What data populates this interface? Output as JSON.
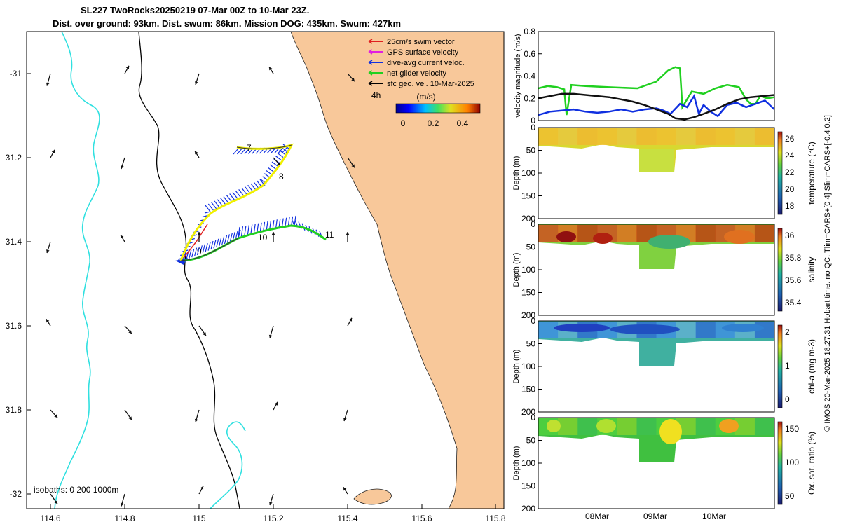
{
  "header": {
    "title_line1": "SL227 TwoRocks20250219 07-Mar 00Z to 10-Mar 23Z.",
    "title_line2": "Dist. over ground: 93km. Dist. swum: 86km. Mission DOG: 435km. Swum: 427km"
  },
  "map": {
    "x_ticks": [
      "114.6",
      "114.8",
      "115",
      "115.2",
      "115.4",
      "115.6",
      "115.8"
    ],
    "y_ticks": [
      "-31",
      "31.2",
      "31.4",
      "31.6",
      "31.8",
      "-32"
    ],
    "isobath_label": "isobaths: 0   200  1000m",
    "time_label": "4h",
    "legend": [
      {
        "label": "25cm/s swim vector",
        "color": "#e02020"
      },
      {
        "label": "GPS surface velocity",
        "color": "#e020e0"
      },
      {
        "label": "dive-avg current veloc.",
        "color": "#1030e0"
      },
      {
        "label": "net glider velocity",
        "color": "#20d020"
      },
      {
        "label": "sfc geo. vel. 10-Mar-2025",
        "color": "#000000"
      }
    ],
    "colorbar": {
      "title": "(m/s)",
      "ticks": [
        "0",
        "0.2",
        "0.4"
      ]
    },
    "day_labels": [
      "7",
      "8",
      "9",
      "10",
      "11"
    ],
    "colors": {
      "land": "#f8c89a",
      "isobath_200": "#000000",
      "isobath_1000": "#30e0e0"
    }
  },
  "chart_data": [
    {
      "type": "line",
      "title": "",
      "ylabel": "velocity magnitude (m/s)",
      "ylim": [
        0,
        0.8
      ],
      "yticks": [
        "0",
        "0.2",
        "0.4",
        "0.6",
        "0.8"
      ],
      "series": [
        {
          "name": "net glider velocity",
          "color": "#20d020",
          "x": [
            0,
            0.04,
            0.08,
            0.11,
            0.12,
            0.14,
            0.2,
            0.3,
            0.42,
            0.5,
            0.55,
            0.58,
            0.6,
            0.61,
            0.65,
            0.7,
            0.75,
            0.8,
            0.85,
            0.88,
            0.9,
            0.92,
            0.94,
            0.97,
            1.0
          ],
          "y": [
            0.29,
            0.31,
            0.3,
            0.28,
            0.05,
            0.32,
            0.31,
            0.3,
            0.29,
            0.35,
            0.45,
            0.48,
            0.47,
            0.12,
            0.26,
            0.24,
            0.29,
            0.32,
            0.3,
            0.19,
            0.15,
            0.15,
            0.22,
            0.2,
            0.21
          ]
        },
        {
          "name": "dive-avg current",
          "color": "#1030e0",
          "x": [
            0,
            0.05,
            0.1,
            0.15,
            0.2,
            0.25,
            0.3,
            0.35,
            0.4,
            0.45,
            0.5,
            0.53,
            0.56,
            0.6,
            0.63,
            0.66,
            0.68,
            0.7,
            0.73,
            0.76,
            0.8,
            0.84,
            0.88,
            0.92,
            0.96,
            1.0
          ],
          "y": [
            0.05,
            0.08,
            0.09,
            0.1,
            0.08,
            0.07,
            0.08,
            0.1,
            0.08,
            0.1,
            0.11,
            0.09,
            0.06,
            0.15,
            0.12,
            0.22,
            0.06,
            0.14,
            0.08,
            0.04,
            0.14,
            0.16,
            0.12,
            0.15,
            0.18,
            0.1
          ]
        },
        {
          "name": "sfc geo. vel.",
          "color": "#111111",
          "x": [
            0,
            0.05,
            0.1,
            0.15,
            0.2,
            0.25,
            0.3,
            0.35,
            0.4,
            0.45,
            0.5,
            0.55,
            0.58,
            0.62,
            0.66,
            0.7,
            0.75,
            0.8,
            0.85,
            0.9,
            0.95,
            1.0
          ],
          "y": [
            0.2,
            0.22,
            0.24,
            0.24,
            0.23,
            0.22,
            0.21,
            0.19,
            0.17,
            0.14,
            0.1,
            0.06,
            0.02,
            0.01,
            0.03,
            0.06,
            0.1,
            0.15,
            0.19,
            0.21,
            0.22,
            0.23
          ]
        }
      ]
    },
    {
      "type": "heatmap",
      "ylabel": "Depth (m)",
      "colorbar_label": "temperature (°C)",
      "ylim": [
        0,
        200
      ],
      "yticks": [
        "0",
        "50",
        "100",
        "150",
        "200"
      ],
      "colorbar_ticks": [
        "18",
        "20",
        "22",
        "24",
        "26"
      ],
      "values_range": [
        17,
        26.5
      ]
    },
    {
      "type": "heatmap",
      "ylabel": "Depth (m)",
      "colorbar_label": "salinity",
      "ylim": [
        0,
        200
      ],
      "yticks": [
        "0",
        "50",
        "100",
        "150",
        "200"
      ],
      "colorbar_ticks": [
        "35.4",
        "35.6",
        "35.8",
        "36"
      ],
      "values_range": [
        35.3,
        36.1
      ]
    },
    {
      "type": "heatmap",
      "ylabel": "Depth (m)",
      "colorbar_label": "chl-a (mg m-3)",
      "ylim": [
        0,
        200
      ],
      "yticks": [
        "0",
        "50",
        "100",
        "150",
        "200"
      ],
      "colorbar_ticks": [
        "0",
        "1",
        "2"
      ],
      "values_range": [
        0,
        2
      ]
    },
    {
      "type": "heatmap",
      "ylabel": "Depth (m)",
      "colorbar_label": "Ox. sat. ratio (%)",
      "ylim": [
        0,
        200
      ],
      "yticks": [
        "0",
        "50",
        "100",
        "150",
        "200"
      ],
      "colorbar_ticks": [
        "50",
        "100",
        "150"
      ],
      "values_range": [
        25,
        175
      ],
      "x_ticks": [
        "08Mar",
        "09Mar",
        "10Mar"
      ]
    }
  ],
  "side_note": "© IMOS 20-Mar-2025 18:27:31 Hobart time. no QC. Tlim=CARS+[0 4] Slim=CARS+[-0.4 0.2]"
}
